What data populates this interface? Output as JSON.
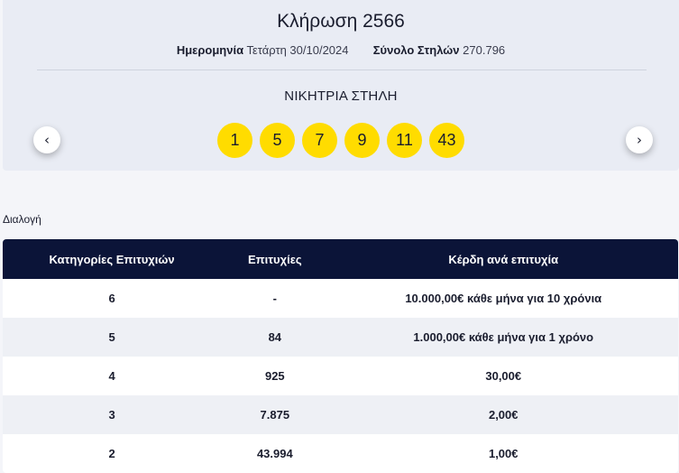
{
  "draw": {
    "title": "Κλήρωση 2566",
    "date_label": "Ημερομηνία",
    "date_value": "Τετάρτη 30/10/2024",
    "columns_label": "Σύνολο Στηλών",
    "columns_value": "270.796",
    "winning_label": "ΝΙΚΗΤΡΙΑ ΣΤΗΛΗ",
    "numbers": [
      "1",
      "5",
      "7",
      "9",
      "11",
      "43"
    ],
    "ball_color": "#ffdc00"
  },
  "nav": {
    "prev_icon": "chevron-left-icon",
    "next_icon": "chevron-right-icon",
    "prev_glyph": "‹",
    "next_glyph": "›"
  },
  "section_label": "Διαλογή",
  "table": {
    "header_color": "#0b1438",
    "headers": [
      "Κατηγορίες Επιτυχιών",
      "Επιτυχίες",
      "Κέρδη ανά επιτυχία"
    ],
    "rows": [
      {
        "category": "6",
        "winners": "-",
        "prize": "10.000,00€ κάθε μήνα για 10 χρόνια"
      },
      {
        "category": "5",
        "winners": "84",
        "prize": "1.000,00€ κάθε μήνα για 1 χρόνο"
      },
      {
        "category": "4",
        "winners": "925",
        "prize": "30,00€"
      },
      {
        "category": "3",
        "winners": "7.875",
        "prize": "2,00€"
      },
      {
        "category": "2",
        "winners": "43.994",
        "prize": "1,00€"
      }
    ]
  }
}
